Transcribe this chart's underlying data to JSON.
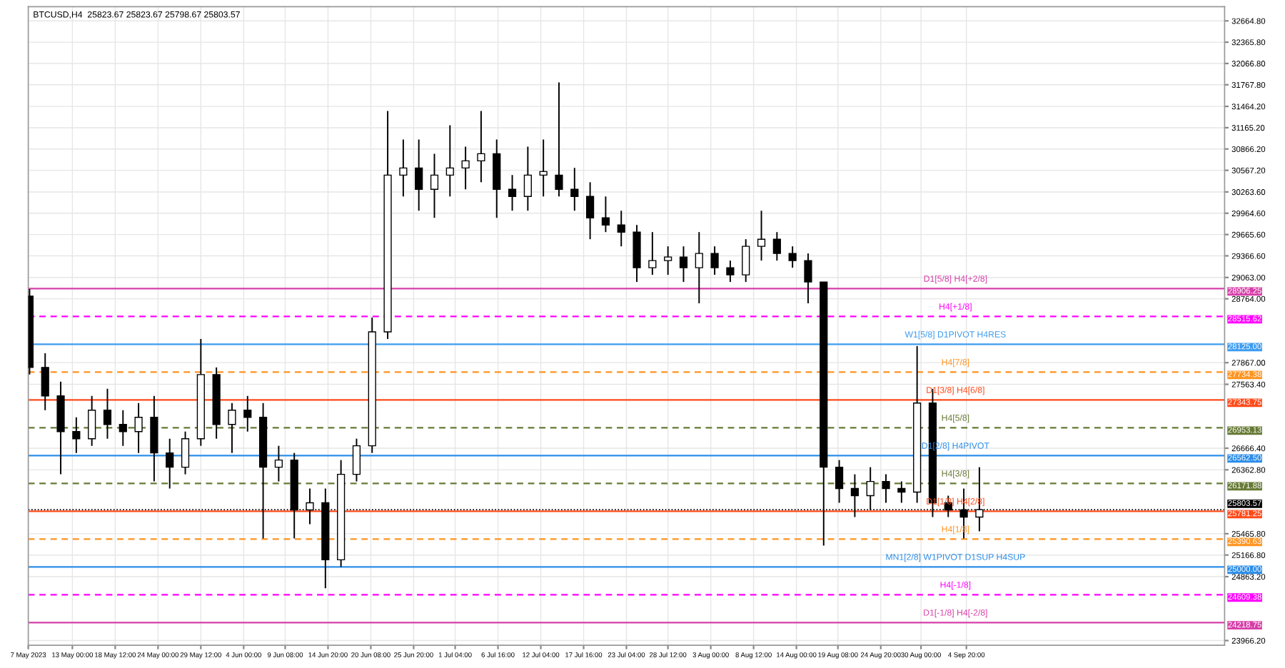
{
  "chart_data": {
    "type": "candlestick",
    "title": "BTCUSD,H4  25823.67 25823.67 25798.67 25803.57",
    "x": [
      "2023-05-07T12:00",
      "2023-05-09T12:00",
      "2023-05-11T12:00",
      "2023-05-13T12:00",
      "2023-05-15T12:00",
      "2023-05-17T12:00",
      "2023-05-19T12:00",
      "2023-05-21T12:00",
      "2023-05-23T12:00",
      "2023-05-25T12:00",
      "2023-05-27T12:00",
      "2023-05-29T12:00",
      "2023-05-31T12:00",
      "2023-06-02T12:00",
      "2023-06-04T12:00",
      "2023-06-06T12:00",
      "2023-06-08T12:00",
      "2023-06-10T12:00",
      "2023-06-12T12:00",
      "2023-06-14T12:00",
      "2023-06-16T12:00",
      "2023-06-18T12:00",
      "2023-06-20T12:00",
      "2023-06-22T12:00",
      "2023-06-24T12:00",
      "2023-06-26T12:00",
      "2023-06-28T12:00",
      "2023-06-30T12:00",
      "2023-07-02T12:00",
      "2023-07-04T12:00",
      "2023-07-06T12:00",
      "2023-07-08T12:00",
      "2023-07-10T12:00",
      "2023-07-12T12:00",
      "2023-07-14T12:00",
      "2023-07-16T12:00",
      "2023-07-18T12:00",
      "2023-07-20T12:00",
      "2023-07-22T12:00",
      "2023-07-24T12:00",
      "2023-07-26T12:00",
      "2023-07-28T12:00",
      "2023-07-30T12:00",
      "2023-08-01T12:00",
      "2023-08-03T12:00",
      "2023-08-05T12:00",
      "2023-08-07T12:00",
      "2023-08-09T12:00",
      "2023-08-11T12:00",
      "2023-08-13T12:00",
      "2023-08-15T12:00",
      "2023-08-17T12:00",
      "2023-08-19T12:00",
      "2023-08-21T12:00",
      "2023-08-23T12:00",
      "2023-08-25T12:00",
      "2023-08-27T12:00",
      "2023-08-29T12:00",
      "2023-08-31T12:00",
      "2023-09-02T12:00",
      "2023-09-04T12:00",
      "2023-09-06T12:00"
    ],
    "ohlc": [
      [
        28800,
        28900,
        27700,
        27800
      ],
      [
        27800,
        28000,
        27200,
        27400
      ],
      [
        27400,
        27600,
        26300,
        26900
      ],
      [
        26900,
        27100,
        26600,
        26800
      ],
      [
        26800,
        27400,
        26700,
        27200
      ],
      [
        27200,
        27500,
        26800,
        27000
      ],
      [
        27000,
        27200,
        26700,
        26900
      ],
      [
        26900,
        27300,
        26600,
        27100
      ],
      [
        27100,
        27400,
        26200,
        26600
      ],
      [
        26600,
        26800,
        26100,
        26400
      ],
      [
        26400,
        26900,
        26300,
        26800
      ],
      [
        26800,
        28200,
        26700,
        27700
      ],
      [
        27700,
        27800,
        26800,
        27000
      ],
      [
        27000,
        27300,
        26600,
        27200
      ],
      [
        27200,
        27400,
        26900,
        27100
      ],
      [
        27100,
        27300,
        25400,
        26400
      ],
      [
        26400,
        26700,
        26200,
        26500
      ],
      [
        26500,
        26600,
        25400,
        25800
      ],
      [
        25800,
        26100,
        25600,
        25900
      ],
      [
        25900,
        26100,
        24700,
        25100
      ],
      [
        25100,
        26500,
        25000,
        26300
      ],
      [
        26300,
        26800,
        26200,
        26700
      ],
      [
        26700,
        28500,
        26600,
        28300
      ],
      [
        28300,
        31400,
        28200,
        30500
      ],
      [
        30500,
        31000,
        30200,
        30600
      ],
      [
        30600,
        31000,
        30000,
        30300
      ],
      [
        30300,
        30800,
        29900,
        30500
      ],
      [
        30500,
        31200,
        30200,
        30600
      ],
      [
        30600,
        30900,
        30300,
        30700
      ],
      [
        30700,
        31400,
        30400,
        30800
      ],
      [
        30800,
        31000,
        29900,
        30300
      ],
      [
        30300,
        30500,
        30000,
        30200
      ],
      [
        30200,
        30900,
        30000,
        30500
      ],
      [
        30500,
        31000,
        30200,
        30550
      ],
      [
        30500,
        31800,
        30200,
        30300
      ],
      [
        30300,
        30600,
        30000,
        30200
      ],
      [
        30200,
        30400,
        29600,
        29900
      ],
      [
        29900,
        30200,
        29700,
        29800
      ],
      [
        29800,
        30000,
        29500,
        29700
      ],
      [
        29700,
        29800,
        29000,
        29200
      ],
      [
        29200,
        29700,
        29100,
        29300
      ],
      [
        29300,
        29500,
        29100,
        29350
      ],
      [
        29350,
        29500,
        29000,
        29200
      ],
      [
        29200,
        29700,
        28700,
        29400
      ],
      [
        29400,
        29500,
        29100,
        29200
      ],
      [
        29200,
        29300,
        29000,
        29100
      ],
      [
        29100,
        29600,
        29000,
        29500
      ],
      [
        29500,
        30000,
        29300,
        29600
      ],
      [
        29600,
        29700,
        29300,
        29400
      ],
      [
        29400,
        29500,
        29200,
        29300
      ],
      [
        29300,
        29400,
        28700,
        29000
      ],
      [
        29000,
        29000,
        25300,
        26400
      ],
      [
        26400,
        26500,
        25900,
        26100
      ],
      [
        26100,
        26300,
        25700,
        26000
      ],
      [
        26000,
        26400,
        25800,
        26200
      ],
      [
        26200,
        26300,
        25900,
        26100
      ],
      [
        26100,
        26200,
        25900,
        26050
      ],
      [
        26050,
        28100,
        25900,
        27300
      ],
      [
        27300,
        27500,
        25700,
        25900
      ],
      [
        25900,
        26000,
        25700,
        25800
      ],
      [
        25800,
        26100,
        25400,
        25700
      ],
      [
        25700,
        26400,
        25500,
        25803.57
      ]
    ],
    "color": "#000000",
    "xlim": [
      "2023-05-07T08:00",
      "2023-10-08T00:00"
    ],
    "xticks": [
      {
        "value": "2023-05-07T08:00",
        "label": "7 May 2023"
      },
      {
        "value": "2023-05-13T00:00",
        "label": "13 May 00:00"
      },
      {
        "value": "2023-05-18T12:00",
        "label": "18 May 12:00"
      },
      {
        "value": "2023-05-24T00:00",
        "label": "24 May 00:00"
      },
      {
        "value": "2023-05-29T12:00",
        "label": "29 May 12:00"
      },
      {
        "value": "2023-06-04T00:00",
        "label": "4 Jun 00:00"
      },
      {
        "value": "2023-06-09T08:00",
        "label": "9 Jun 08:00"
      },
      {
        "value": "2023-06-14T20:00",
        "label": "14 Jun 20:00"
      },
      {
        "value": "2023-06-20T08:00",
        "label": "20 Jun 08:00"
      },
      {
        "value": "2023-06-25T20:00",
        "label": "25 Jun 20:00"
      },
      {
        "value": "2023-07-01T04:00",
        "label": "1 Jul 04:00"
      },
      {
        "value": "2023-07-06T16:00",
        "label": "6 Jul 16:00"
      },
      {
        "value": "2023-07-12T04:00",
        "label": "12 Jul 04:00"
      },
      {
        "value": "2023-07-17T16:00",
        "label": "17 Jul 16:00"
      },
      {
        "value": "2023-07-23T04:00",
        "label": "23 Jul 04:00"
      },
      {
        "value": "2023-07-28T12:00",
        "label": "28 Jul 12:00"
      },
      {
        "value": "2023-08-03T00:00",
        "label": "3 Aug 00:00"
      },
      {
        "value": "2023-08-08T12:00",
        "label": "8 Aug 12:00"
      },
      {
        "value": "2023-08-14T00:00",
        "label": "14 Aug 00:00"
      },
      {
        "value": "2023-08-19T08:00",
        "label": "19 Aug 08:00"
      },
      {
        "value": "2023-08-24T20:00",
        "label": "24 Aug 20:00"
      },
      {
        "value": "2023-08-30T00:00",
        "label": "30 Aug 00:00"
      },
      {
        "value": "2023-09-04T20:00",
        "label": "4 Sep 20:00"
      }
    ],
    "ylim": [
      23900,
      32864
    ],
    "yticks": [
      {
        "value": 32664.8,
        "label": "32664.80"
      },
      {
        "value": 32365.8,
        "label": "32365.80"
      },
      {
        "value": 32066.8,
        "label": "32066.80"
      },
      {
        "value": 31767.8,
        "label": "31767.80"
      },
      {
        "value": 31464.2,
        "label": "31464.20"
      },
      {
        "value": 31165.2,
        "label": "31165.20"
      },
      {
        "value": 30866.2,
        "label": "30866.20"
      },
      {
        "value": 30567.2,
        "label": "30567.20"
      },
      {
        "value": 30263.6,
        "label": "30263.60"
      },
      {
        "value": 29964.6,
        "label": "29964.60"
      },
      {
        "value": 29665.6,
        "label": "29665.60"
      },
      {
        "value": 29366.6,
        "label": "29366.60"
      },
      {
        "value": 29063,
        "label": "29063.00"
      },
      {
        "value": 28764,
        "label": "28764.00"
      },
      {
        "value": 27867,
        "label": "27867.00"
      },
      {
        "value": 27563.4,
        "label": "27563.40"
      },
      {
        "value": 26666.4,
        "label": "26666.40"
      },
      {
        "value": 26362.8,
        "label": "26362.80"
      },
      {
        "value": 25465.8,
        "label": "25465.80"
      },
      {
        "value": 25166.8,
        "label": "25166.80"
      },
      {
        "value": 24863.2,
        "label": "24863.20"
      },
      {
        "value": 23966.2,
        "label": "23966.20"
      }
    ],
    "annotations": [
      {
        "text": "28906.25",
        "x": "2023-10-08T00:00",
        "y": 28906.25
      },
      {
        "text": "28515.62",
        "x": "2023-10-08T00:00",
        "y": 28515.62
      },
      {
        "text": "28125.00",
        "x": "2023-10-08T00:00",
        "y": 28125.0
      },
      {
        "text": "27734.38",
        "x": "2023-10-08T00:00",
        "y": 27734.38
      },
      {
        "text": "27343.75",
        "x": "2023-10-08T00:00",
        "y": 27343.75
      },
      {
        "text": "26953.13",
        "x": "2023-10-08T00:00",
        "y": 26953.13
      },
      {
        "text": "26562.50",
        "x": "2023-10-08T00:00",
        "y": 26562.5
      },
      {
        "text": "26171.88",
        "x": "2023-10-08T00:00",
        "y": 26171.88
      },
      {
        "text": "25781.25",
        "x": "2023-10-08T00:00",
        "y": 25781.25
      },
      {
        "text": "25803.57",
        "x": "2023-10-08T00:00",
        "y": 25803.57
      },
      {
        "text": "25390.63",
        "x": "2023-10-08T00:00",
        "y": 25390.63
      },
      {
        "text": "25000.00",
        "x": "2023-10-08T00:00",
        "y": 25000.0
      },
      {
        "text": "24609.38",
        "x": "2023-10-08T00:00",
        "y": 24609.38
      },
      {
        "text": "24218.75",
        "x": "2023-10-08T00:00",
        "y": 24218.75
      }
    ],
    "grid": true,
    "ref_lines": [
      {
        "axis": "y",
        "value": 28906.25,
        "label": "D1[5/8] H4[+2/8]",
        "color": "#d63fa8",
        "line_style": "solid"
      },
      {
        "axis": "y",
        "value": 28515.62,
        "label": "H4[+1/8]",
        "color": "#ff00ff",
        "line_style": "dashed"
      },
      {
        "axis": "y",
        "value": 28125.0,
        "label": "W1[5/8] D1PIVOT H4RES",
        "color": "#3d9cf0",
        "line_style": "solid"
      },
      {
        "axis": "y",
        "value": 27734.38,
        "label": "H4[7/8]",
        "color": "#ff9420",
        "line_style": "dashed"
      },
      {
        "axis": "y",
        "value": 27343.75,
        "label": "D1[3/8] H4[6/8]",
        "color": "#ff4a1a",
        "line_style": "solid"
      },
      {
        "axis": "y",
        "value": 26953.13,
        "label": "H4[5/8]",
        "color": "#667a35",
        "line_style": "dashed"
      },
      {
        "axis": "y",
        "value": 26562.5,
        "label": "D1[2/8] H4PIVOT",
        "color": "#2b8de8",
        "line_style": "solid"
      },
      {
        "axis": "y",
        "value": 26171.88,
        "label": "H4[3/8]",
        "color": "#667a35",
        "line_style": "dashed"
      },
      {
        "axis": "y",
        "value": 25781.25,
        "label": "D1[1/8] H4[2/8]",
        "color": "#ff4a1a",
        "line_style": "solid"
      },
      {
        "axis": "y",
        "value": 25390.63,
        "label": "H4[1/8]",
        "color": "#ff9420",
        "line_style": "dashed"
      },
      {
        "axis": "y",
        "value": 25000.0,
        "label": "MN1[2/8] W1PIVOT D1SUP H4SUP",
        "color": "#2b8de8",
        "line_style": "solid"
      },
      {
        "axis": "y",
        "value": 24609.38,
        "label": "H4[-1/8]",
        "color": "#ff00ff",
        "line_style": "dashed"
      },
      {
        "axis": "y",
        "value": 24218.75,
        "label": "D1[-1/8] H4[-2/8]",
        "color": "#d63fa8",
        "line_style": "solid"
      },
      {
        "axis": "y",
        "value": 25803.57,
        "label": null,
        "color": "#000000",
        "line_style": "dotted"
      }
    ]
  }
}
